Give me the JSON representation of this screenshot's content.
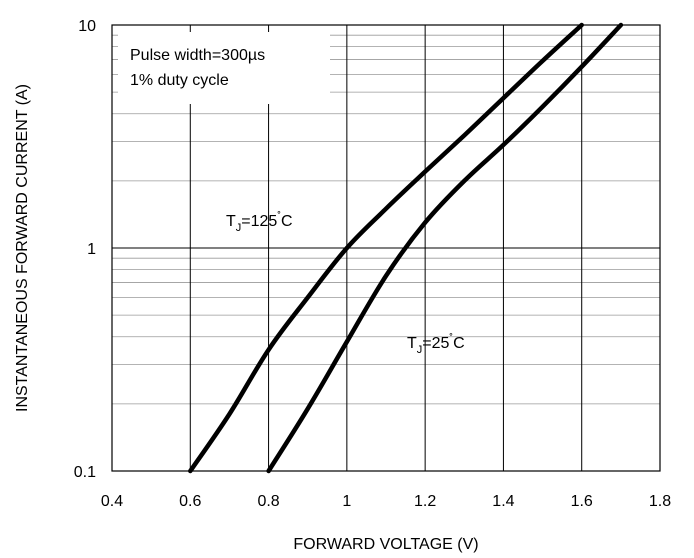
{
  "chart_data": {
    "type": "line",
    "title": "",
    "xlabel": "FORWARD VOLTAGE (V)",
    "ylabel": "INSTANTANEOUS FORWARD CURRENT (A)",
    "xlim": [
      0.4,
      1.8
    ],
    "ylim": [
      0.1,
      10
    ],
    "y_scale": "log",
    "grid": true,
    "x_ticks": [
      "0.4",
      "0.6",
      "0.8",
      "1",
      "1.2",
      "1.4",
      "1.6",
      "1.8"
    ],
    "y_ticks": [
      "0.1",
      "1",
      "10"
    ],
    "annotation": {
      "line1": "Pulse width=300µs",
      "line2": "1% duty cycle"
    },
    "series": [
      {
        "label_main": "T",
        "label_sub": "J",
        "label_rest": "=125",
        "label_deg": "˚",
        "label_unit": "C",
        "x": [
          0.6,
          0.7,
          0.8,
          0.9,
          1.0,
          1.1,
          1.2,
          1.3,
          1.4,
          1.5,
          1.6
        ],
        "y": [
          0.1,
          0.18,
          0.35,
          0.6,
          1.0,
          1.5,
          2.2,
          3.2,
          4.7,
          6.9,
          10
        ]
      },
      {
        "label_main": "T",
        "label_sub": "J",
        "label_rest": "=25",
        "label_deg": "˚",
        "label_unit": "C",
        "x": [
          0.8,
          0.9,
          1.0,
          1.1,
          1.2,
          1.3,
          1.4,
          1.5,
          1.6,
          1.7
        ],
        "y": [
          0.1,
          0.19,
          0.38,
          0.75,
          1.3,
          2.0,
          2.9,
          4.3,
          6.5,
          10
        ]
      }
    ]
  }
}
